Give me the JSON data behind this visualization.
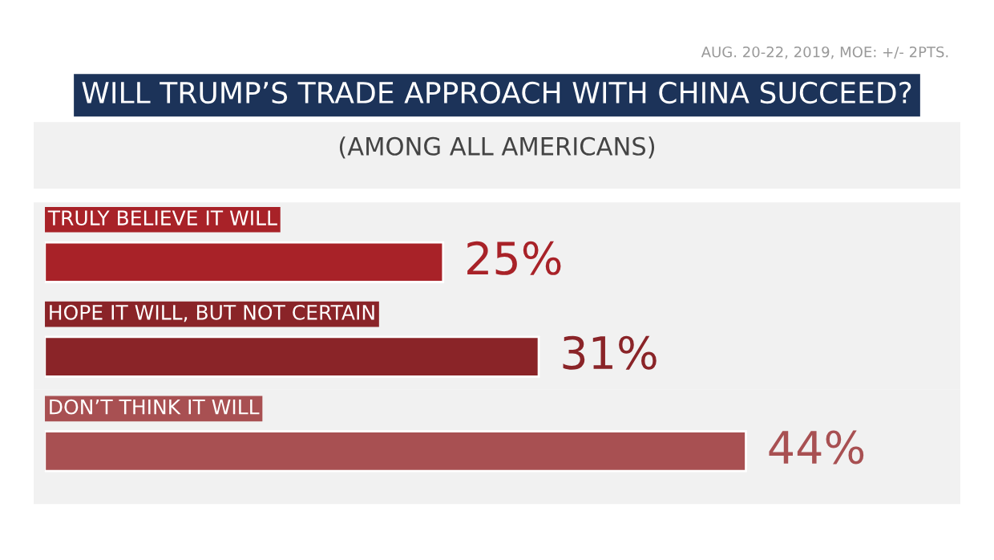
{
  "chart_data": {
    "type": "bar",
    "orientation": "horizontal",
    "title": "WILL TRUMP’S TRADE APPROACH WITH CHINA SUCCEED?",
    "subtitle": "(AMONG ALL AMERICANS)",
    "annotations": [
      "AUG. 20-22, 2019, MOE: +/- 2PTS."
    ],
    "categories": [
      "TRULY BELIEVE IT WILL",
      "HOPE IT WILL, BUT NOT CERTAIN",
      "DON’T THINK IT WILL"
    ],
    "values": [
      25,
      31,
      44
    ],
    "value_labels": [
      "25%",
      "31%",
      "44%"
    ],
    "colors": [
      "#a82228",
      "#8a2428",
      "#a85052"
    ],
    "tick_labels": false
  }
}
